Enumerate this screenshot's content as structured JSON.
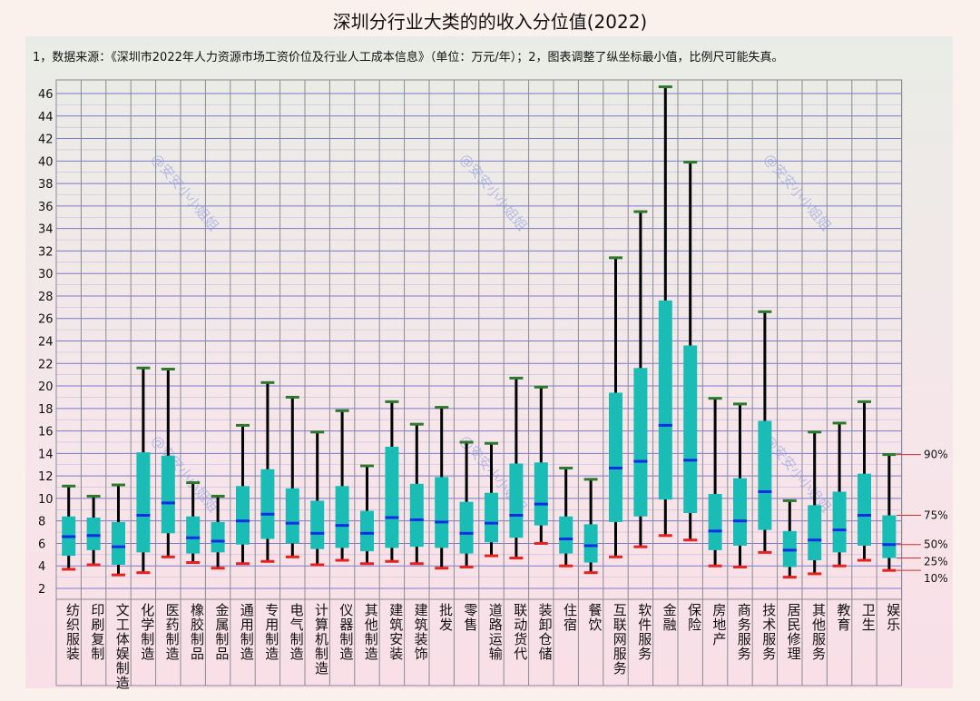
{
  "chart_data": {
    "type": "box",
    "title": "深圳分行业大类的的收入分位值(2022)",
    "note": "1，数据来源：《深圳市2022年人力资源市场工资价位及行业人工成本信息》（单位：万元/年）；2，图表调整了纵坐标最小值，比例尺可能失真。",
    "ylim": [
      2,
      46
    ],
    "yticks": [
      2,
      4,
      6,
      8,
      10,
      12,
      14,
      16,
      18,
      20,
      22,
      24,
      26,
      28,
      30,
      32,
      34,
      36,
      38,
      40,
      42,
      44,
      46
    ],
    "grid": true,
    "percentile_labels": [
      "90%",
      "75%",
      "50%",
      "25%",
      "10%"
    ],
    "watermark": "@安安小小姐姐",
    "colors": {
      "box": "#19bdb6",
      "median": "#0a2ee6",
      "p90_cap": "#2b7a2b",
      "p10_cap": "#e8201e",
      "whisker": "#000000",
      "grid": "#6e6ec8"
    },
    "categories": [
      "纺织服装",
      "印刷复制",
      "文工体娱制造",
      "化学制造",
      "医药制造",
      "橡胶制品",
      "金属制品",
      "通用制造",
      "专用制造",
      "电气制造",
      "计算机制造",
      "仪器制造",
      "其他制造",
      "建筑安装",
      "建筑装饰",
      "批发",
      "零售",
      "道路运输",
      "联动货代",
      "装卸仓储",
      "住宿",
      "餐饮",
      "互联网服务",
      "软件服务",
      "金融",
      "保险",
      "房地产",
      "商务服务",
      "技术服务",
      "居民修理",
      "其他服务",
      "教育",
      "卫生",
      "娱乐"
    ],
    "p90": [
      11.1,
      10.2,
      11.2,
      21.6,
      21.5,
      11.4,
      10.2,
      16.5,
      20.3,
      19.0,
      15.9,
      17.8,
      12.9,
      18.6,
      16.6,
      18.1,
      15.0,
      14.9,
      20.7,
      19.9,
      12.7,
      11.7,
      31.4,
      35.5,
      46.6,
      39.9,
      18.9,
      18.4,
      26.6,
      9.8,
      15.9,
      16.7,
      18.6,
      13.9
    ],
    "p75": [
      8.4,
      8.3,
      7.9,
      14.1,
      13.8,
      8.4,
      7.9,
      11.1,
      12.6,
      10.9,
      9.8,
      11.1,
      8.9,
      14.6,
      11.3,
      11.9,
      9.7,
      10.5,
      13.1,
      13.2,
      8.4,
      7.7,
      19.4,
      21.6,
      27.6,
      23.6,
      10.4,
      11.8,
      16.9,
      7.1,
      9.4,
      10.6,
      12.2,
      8.5
    ],
    "p50": [
      6.6,
      6.7,
      5.7,
      8.5,
      9.6,
      6.5,
      6.2,
      8.0,
      8.6,
      7.8,
      6.9,
      7.6,
      6.9,
      8.3,
      8.1,
      7.9,
      6.9,
      7.8,
      8.5,
      9.5,
      6.4,
      5.8,
      12.7,
      13.3,
      16.5,
      13.4,
      7.1,
      8.0,
      10.6,
      5.4,
      6.3,
      7.2,
      8.5,
      5.9
    ],
    "p25": [
      4.9,
      5.4,
      4.1,
      5.2,
      6.9,
      5.1,
      5.2,
      5.9,
      6.4,
      6.0,
      5.5,
      5.6,
      5.3,
      5.6,
      5.7,
      5.6,
      5.1,
      6.1,
      6.5,
      7.6,
      5.1,
      4.3,
      7.9,
      8.4,
      9.9,
      8.7,
      5.4,
      5.8,
      7.2,
      3.9,
      4.5,
      5.2,
      5.8,
      4.7
    ],
    "p10": [
      3.7,
      4.1,
      3.2,
      3.4,
      4.8,
      4.3,
      3.8,
      4.2,
      4.4,
      4.8,
      4.1,
      4.5,
      4.2,
      4.4,
      4.2,
      3.8,
      3.9,
      4.9,
      4.7,
      6.0,
      4.0,
      3.4,
      4.8,
      5.7,
      6.7,
      6.3,
      4.0,
      3.9,
      5.2,
      3.0,
      3.3,
      4.0,
      4.5,
      3.6
    ]
  }
}
